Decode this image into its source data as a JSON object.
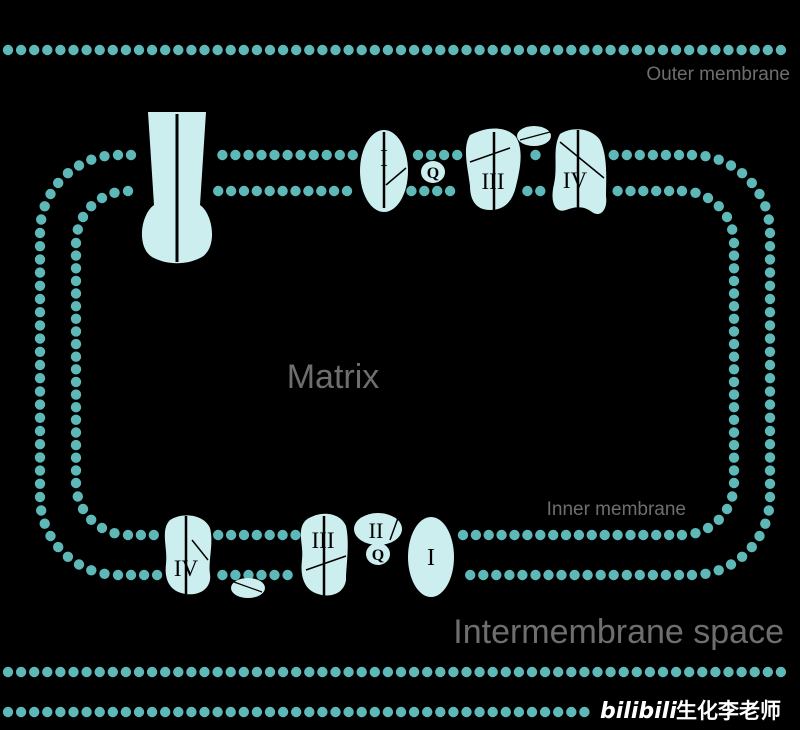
{
  "labels": {
    "outer_membrane": "Outer membrane",
    "inner_membrane": "Inner membrane",
    "matrix": "Matrix",
    "intermembrane_space": "Intermembrane space"
  },
  "complexes": {
    "top": {
      "c1": "I",
      "q": "Q",
      "c3": "III",
      "c4": "IV"
    },
    "bottom": {
      "c4": "IV",
      "c3": "III",
      "c2": "II",
      "q": "Q",
      "c1": "I"
    }
  },
  "watermark": {
    "brand": "bilibili",
    "author": "生化李老师"
  },
  "colors": {
    "background": "#000000",
    "membrane_bead": "#5fb8b8",
    "protein": "#cdeeee",
    "label": "#6e6e6e"
  }
}
